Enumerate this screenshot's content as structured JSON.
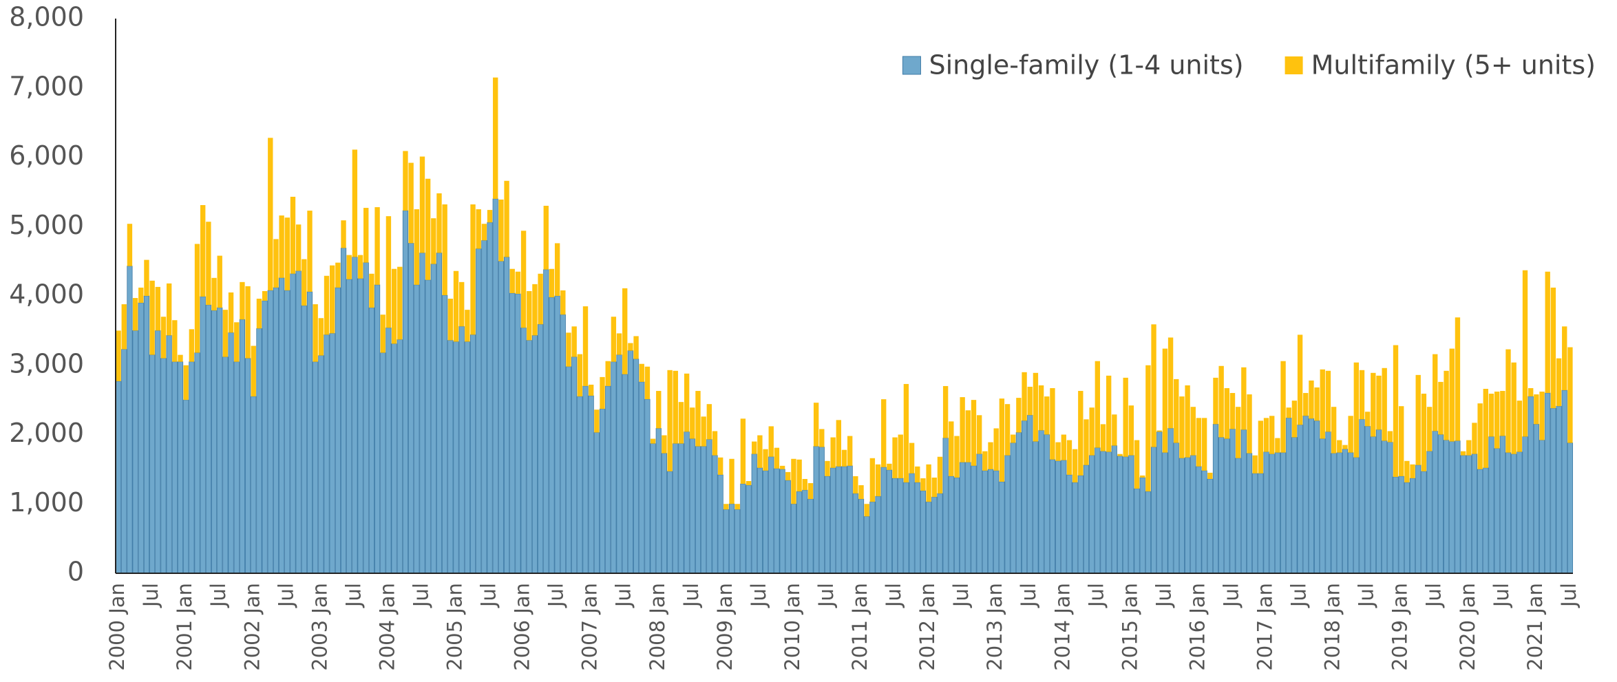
{
  "chart_data": {
    "type": "stacked_bar",
    "categories": [
      "2000 Jan",
      null,
      null,
      null,
      null,
      null,
      "Jul",
      null,
      null,
      null,
      null,
      null,
      "2001 Jan",
      null,
      null,
      null,
      null,
      null,
      "Jul",
      null,
      null,
      null,
      null,
      null,
      "2002 Jan",
      null,
      null,
      null,
      null,
      null,
      "Jul",
      null,
      null,
      null,
      null,
      null,
      "2003 Jan",
      null,
      null,
      null,
      null,
      null,
      "Jul",
      null,
      null,
      null,
      null,
      null,
      "2004 Jan",
      null,
      null,
      null,
      null,
      null,
      "Jul",
      null,
      null,
      null,
      null,
      null,
      "2005 Jan",
      null,
      null,
      null,
      null,
      null,
      "Jul",
      null,
      null,
      null,
      null,
      null,
      "2006 Jan",
      null,
      null,
      null,
      null,
      null,
      "Jul",
      null,
      null,
      null,
      null,
      null,
      "2007 Jan",
      null,
      null,
      null,
      null,
      null,
      "Jul",
      null,
      null,
      null,
      null,
      null,
      "2008 Jan",
      null,
      null,
      null,
      null,
      null,
      "Jul",
      null,
      null,
      null,
      null,
      null,
      "2009 Jan",
      null,
      null,
      null,
      null,
      null,
      "Jul",
      null,
      null,
      null,
      null,
      null,
      "2010 Jan",
      null,
      null,
      null,
      null,
      null,
      "Jul",
      null,
      null,
      null,
      null,
      null,
      "2011 Jan",
      null,
      null,
      null,
      null,
      null,
      "Jul",
      null,
      null,
      null,
      null,
      null,
      "2012 Jan",
      null,
      null,
      null,
      null,
      null,
      "Jul",
      null,
      null,
      null,
      null,
      null,
      "2013 Jan",
      null,
      null,
      null,
      null,
      null,
      "Jul",
      null,
      null,
      null,
      null,
      null,
      "2014 Jan",
      null,
      null,
      null,
      null,
      null,
      "Jul",
      null,
      null,
      null,
      null,
      null,
      "2015 Jan",
      null,
      null,
      null,
      null,
      null,
      "Jul",
      null,
      null,
      null,
      null,
      null,
      "2016 Jan",
      null,
      null,
      null,
      null,
      null,
      "Jul",
      null,
      null,
      null,
      null,
      null,
      "2017 Jan",
      null,
      null,
      null,
      null,
      null,
      "Jul",
      null,
      null,
      null,
      null,
      null,
      "2018 Jan",
      null,
      null,
      null,
      null,
      null,
      "Jul",
      null,
      null,
      null,
      null,
      null,
      "2019 Jan",
      null,
      null,
      null,
      null,
      null,
      "Jul",
      null,
      null,
      null,
      null,
      null,
      "2020 Jan",
      null,
      null,
      null,
      null,
      null,
      "Jul",
      null,
      null,
      null,
      null,
      null,
      "2021 Jan",
      null,
      null,
      null,
      null,
      null,
      "Jul"
    ],
    "series": [
      {
        "name": "Single-family (1-4 units)",
        "color": "#6fa8cc",
        "values": [
          2770,
          3230,
          4430,
          3500,
          3900,
          4000,
          3150,
          3500,
          3100,
          3430,
          3050,
          3050,
          2500,
          3050,
          3180,
          3990,
          3870,
          3790,
          3830,
          3120,
          3470,
          3050,
          3660,
          3100,
          2550,
          3530,
          3930,
          4080,
          4120,
          4260,
          4080,
          4320,
          4360,
          3860,
          4060,
          3050,
          3140,
          3440,
          3460,
          4120,
          4690,
          4240,
          4560,
          4250,
          4480,
          3830,
          4160,
          3180,
          3540,
          3310,
          3370,
          5230,
          4760,
          4160,
          4620,
          4230,
          4460,
          4620,
          4010,
          3360,
          3340,
          3560,
          3340,
          3440,
          4680,
          4800,
          5060,
          5400,
          4500,
          4560,
          4040,
          4030,
          3540,
          3360,
          3430,
          3590,
          4380,
          3980,
          4000,
          3730,
          2980,
          3120,
          2550,
          2700,
          2560,
          2030,
          2370,
          2700,
          3050,
          3150,
          2870,
          3210,
          3090,
          2760,
          2510,
          1870,
          2090,
          1730,
          1470,
          1870,
          1870,
          2040,
          1940,
          1830,
          1830,
          1930,
          1700,
          1420,
          920,
          1000,
          920,
          1290,
          1270,
          1720,
          1520,
          1480,
          1680,
          1510,
          1500,
          1340,
          1000,
          1180,
          1200,
          1070,
          1830,
          1820,
          1400,
          1520,
          1540,
          1540,
          1550,
          1150,
          1070,
          820,
          1030,
          1110,
          1530,
          1490,
          1370,
          1370,
          1310,
          1440,
          1310,
          1190,
          1030,
          1100,
          1150,
          1950,
          1400,
          1380,
          1600,
          1600,
          1550,
          1720,
          1480,
          1500,
          1480,
          1320,
          1700,
          1880,
          2030,
          2200,
          2280,
          1900,
          2060,
          2000,
          1640,
          1620,
          1630,
          1420,
          1310,
          1410,
          1560,
          1700,
          1810,
          1760,
          1750,
          1840,
          1690,
          1680,
          1700,
          1220,
          1380,
          1180,
          1820,
          2040,
          1740,
          2090,
          1880,
          1660,
          1670,
          1700,
          1540,
          1480,
          1360,
          2150,
          1960,
          1940,
          2080,
          1660,
          2070,
          1730,
          1440,
          1440,
          1750,
          1720,
          1740,
          1740,
          2240,
          1960,
          2140,
          2270,
          2230,
          2200,
          1940,
          2040,
          1730,
          1740,
          1790,
          1740,
          1670,
          2220,
          2120,
          1970,
          2070,
          1910,
          1890,
          1390,
          1400,
          1310,
          1370,
          1560,
          1470,
          1760,
          2050,
          2000,
          1920,
          1900,
          1910,
          1700,
          1700,
          1720,
          1500,
          1520,
          1970,
          1800,
          1980,
          1740,
          1720,
          1750,
          1970,
          2550,
          2150,
          1920,
          2600,
          2380,
          2410,
          2640,
          1880
        ]
      },
      {
        "name": "Multifamily (5+ units)",
        "color": "#ffc20e",
        "values": [
          730,
          650,
          610,
          470,
          220,
          520,
          1070,
          630,
          600,
          750,
          600,
          100,
          500,
          470,
          1570,
          1320,
          1200,
          470,
          750,
          680,
          580,
          570,
          540,
          1040,
          730,
          430,
          140,
          2200,
          700,
          900,
          1050,
          1110,
          670,
          670,
          1170,
          830,
          540,
          850,
          980,
          360,
          400,
          350,
          1550,
          340,
          790,
          490,
          1120,
          550,
          1610,
          1080,
          1050,
          860,
          1160,
          1090,
          1390,
          1460,
          660,
          860,
          1310,
          600,
          1020,
          640,
          460,
          1880,
          570,
          240,
          180,
          1750,
          890,
          1100,
          350,
          320,
          1400,
          710,
          740,
          730,
          920,
          410,
          760,
          350,
          490,
          440,
          610,
          1150,
          160,
          330,
          460,
          360,
          650,
          310,
          1240,
          110,
          330,
          260,
          470,
          70,
          540,
          260,
          1460,
          1050,
          600,
          840,
          450,
          800,
          430,
          510,
          350,
          250,
          80,
          650,
          80,
          940,
          60,
          180,
          470,
          310,
          440,
          300,
          50,
          120,
          650,
          460,
          160,
          230,
          630,
          260,
          220,
          440,
          670,
          240,
          430,
          250,
          200,
          180,
          630,
          460,
          980,
          90,
          590,
          630,
          1420,
          440,
          230,
          180,
          540,
          280,
          530,
          750,
          790,
          600,
          940,
          750,
          950,
          560,
          280,
          390,
          610,
          1200,
          740,
          120,
          500,
          700,
          410,
          990,
          650,
          550,
          1030,
          270,
          370,
          500,
          480,
          1220,
          660,
          690,
          1250,
          390,
          1100,
          450,
          30,
          1140,
          720,
          700,
          30,
          1820,
          1770,
          20,
          1500,
          1310,
          920,
          890,
          1040,
          700,
          700,
          760,
          90,
          670,
          1030,
          730,
          520,
          740,
          900,
          850,
          260,
          760,
          490,
          550,
          210,
          1320,
          150,
          530,
          1300,
          330,
          550,
          480,
          1000,
          880,
          670,
          180,
          60,
          530,
          1370,
          710,
          210,
          920,
          780,
          1050,
          160,
          1900,
          1010,
          310,
          200,
          1300,
          1120,
          640,
          1110,
          760,
          1000,
          1340,
          1780,
          60,
          220,
          450,
          950,
          1140,
          620,
          820,
          650,
          1490,
          1320,
          740,
          2400,
          120,
          430,
          700,
          1750,
          1740,
          690,
          920,
          1380
        ]
      }
    ],
    "ylim": [
      0,
      8000
    ],
    "yticks": [
      0,
      {
        "value": 1000,
        "label": "1,000"
      },
      {
        "value": 2000,
        "label": "2,000"
      },
      {
        "value": 3000,
        "label": "3,000"
      },
      {
        "value": 4000,
        "label": "4,000"
      },
      {
        "value": 5000,
        "label": "5,000"
      },
      {
        "value": 6000,
        "label": "6,000"
      },
      {
        "value": 7000,
        "label": "7,000"
      },
      {
        "value": 8000,
        "label": "8,000"
      }
    ],
    "grid": false,
    "legend": "top-right"
  }
}
